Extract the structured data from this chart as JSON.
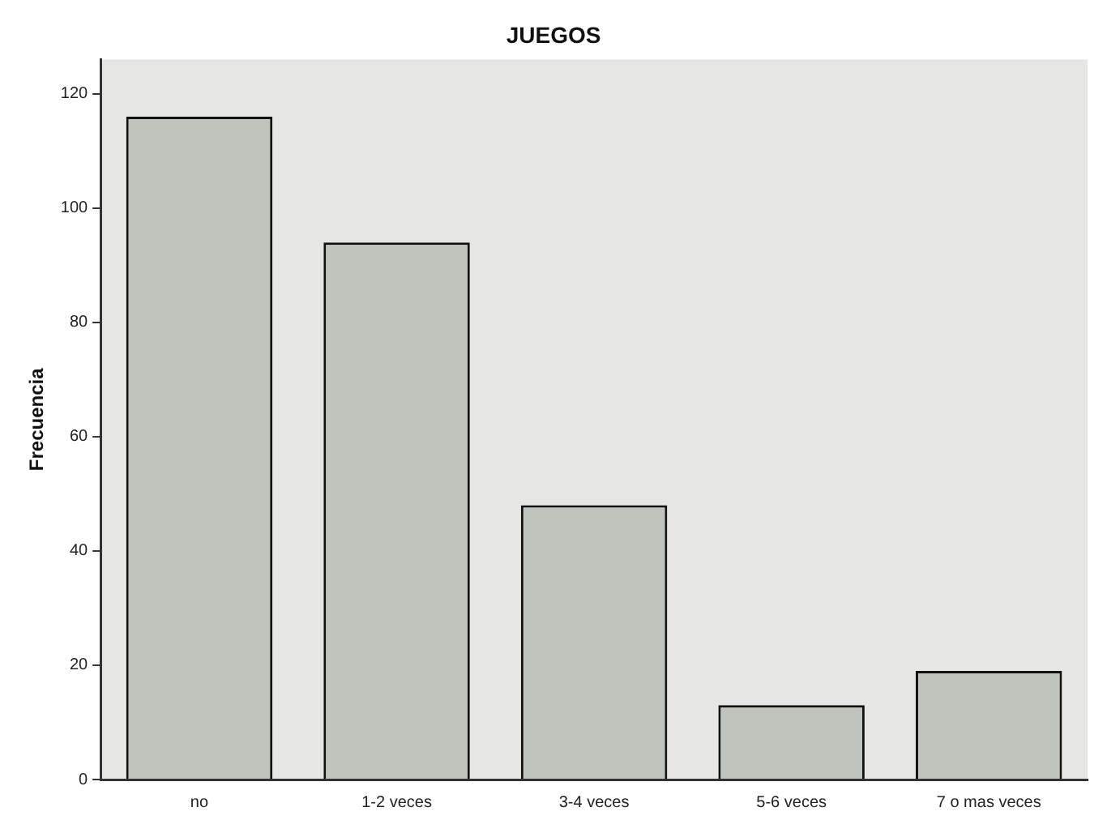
{
  "chart_data": {
    "type": "bar",
    "title": "JUEGOS",
    "ylabel": "Frecuencia",
    "categories": [
      "no",
      "1-2 veces",
      "3-4 veces",
      "5-6 veces",
      "7 o mas veces"
    ],
    "values": [
      116,
      94,
      48,
      13,
      19
    ],
    "color": "#bfc4bc",
    "ylim": [
      0,
      126
    ],
    "yticks": [
      0,
      20,
      40,
      60,
      80,
      100,
      120
    ],
    "grid": false,
    "legend": false
  }
}
